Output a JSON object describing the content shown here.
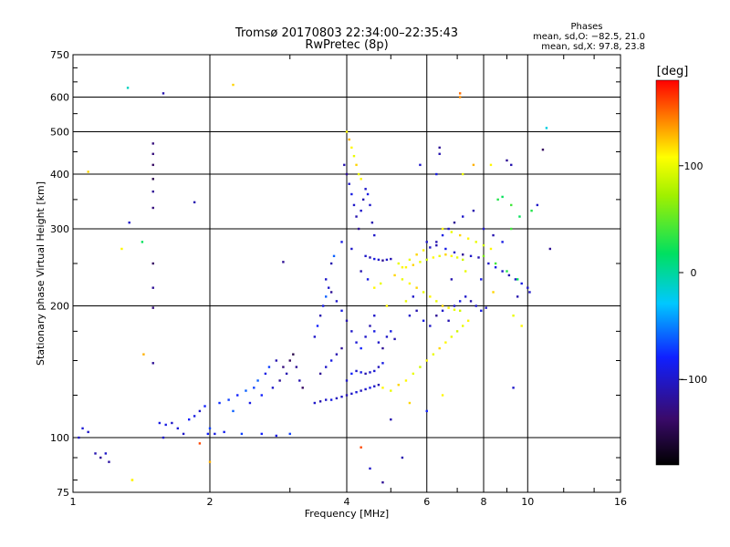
{
  "chart_data": {
    "type": "scatter",
    "title": "Tromsø 20170803 22:34:00–22:35:43",
    "subtitle": "RwPretec (8p)",
    "xlabel": "Frequency [MHz]",
    "ylabel": "Stationary phase Virtual Height [km]",
    "x_scale": "log",
    "y_scale": "log",
    "xlim": [
      1,
      16
    ],
    "ylim": [
      75,
      750
    ],
    "x_ticks": [
      1,
      2,
      4,
      6,
      8,
      10,
      16
    ],
    "y_ticks": [
      75,
      100,
      200,
      300,
      400,
      500,
      600,
      750
    ],
    "grid": true,
    "phase_stats": {
      "heading": "Phases",
      "o_line": "mean, sd,O: −82.5, 21.0",
      "x_line": "mean, sd,X:  97.8, 23.8"
    },
    "colorbar": {
      "unit": "[deg]",
      "range": [
        -180,
        180
      ],
      "ticks": [
        {
          "value": 100,
          "label": "100"
        },
        {
          "value": 0,
          "label": "0"
        },
        {
          "value": -100,
          "label": "−100"
        }
      ]
    },
    "points": [
      [
        1.03,
        100,
        -100
      ],
      [
        1.05,
        105,
        -95
      ],
      [
        1.08,
        103,
        -100
      ],
      [
        1.12,
        92,
        -110
      ],
      [
        1.15,
        90,
        -120
      ],
      [
        1.18,
        92,
        -100
      ],
      [
        1.2,
        88,
        -115
      ],
      [
        1.08,
        405,
        120
      ],
      [
        1.28,
        270,
        110
      ],
      [
        1.32,
        630,
        -10
      ],
      [
        1.35,
        80,
        120
      ],
      [
        1.33,
        310,
        -100
      ],
      [
        1.42,
        280,
        20
      ],
      [
        1.43,
        155,
        130
      ],
      [
        1.5,
        470,
        -130
      ],
      [
        1.5,
        445,
        -130
      ],
      [
        1.5,
        420,
        -140
      ],
      [
        1.5,
        390,
        -150
      ],
      [
        1.5,
        365,
        -120
      ],
      [
        1.5,
        335,
        -130
      ],
      [
        1.5,
        250,
        -140
      ],
      [
        1.5,
        220,
        -120
      ],
      [
        1.5,
        198,
        -130
      ],
      [
        1.5,
        148,
        -120
      ],
      [
        1.55,
        108,
        -90
      ],
      [
        1.58,
        612,
        -110
      ],
      [
        1.58,
        100,
        -100
      ],
      [
        1.6,
        107,
        -90
      ],
      [
        1.65,
        108,
        -100
      ],
      [
        1.7,
        105,
        -95
      ],
      [
        1.75,
        102,
        -100
      ],
      [
        1.8,
        110,
        -80
      ],
      [
        1.85,
        112,
        -90
      ],
      [
        1.9,
        115,
        -100
      ],
      [
        1.95,
        118,
        -80
      ],
      [
        1.98,
        102,
        -80
      ],
      [
        2.0,
        105,
        -70
      ],
      [
        2.05,
        102,
        -90
      ],
      [
        2.1,
        120,
        -75
      ],
      [
        2.15,
        103,
        -85
      ],
      [
        2.2,
        122,
        -70
      ],
      [
        2.25,
        115,
        -60
      ],
      [
        2.3,
        125,
        -80
      ],
      [
        2.35,
        102,
        -70
      ],
      [
        2.4,
        128,
        -60
      ],
      [
        2.45,
        120,
        -90
      ],
      [
        2.5,
        130,
        -70
      ],
      [
        2.55,
        135,
        -60
      ],
      [
        2.6,
        125,
        -80
      ],
      [
        2.65,
        140,
        -90
      ],
      [
        2.7,
        145,
        -70
      ],
      [
        2.75,
        130,
        -100
      ],
      [
        2.8,
        150,
        -110
      ],
      [
        2.85,
        135,
        -120
      ],
      [
        2.9,
        145,
        -130
      ],
      [
        2.95,
        140,
        -110
      ],
      [
        3.0,
        150,
        -140
      ],
      [
        3.05,
        155,
        -150
      ],
      [
        3.1,
        145,
        -120
      ],
      [
        3.15,
        135,
        -110
      ],
      [
        3.2,
        130,
        -140
      ],
      [
        2.6,
        102,
        -80
      ],
      [
        2.8,
        101,
        -90
      ],
      [
        3.0,
        102,
        -70
      ],
      [
        2.25,
        640,
        120
      ],
      [
        1.85,
        345,
        -110
      ],
      [
        2.9,
        252,
        -120
      ],
      [
        1.9,
        97,
        160
      ],
      [
        2.0,
        88,
        130
      ],
      [
        1.35,
        80,
        110
      ],
      [
        3.4,
        120,
        -100
      ],
      [
        3.5,
        121,
        -110
      ],
      [
        3.6,
        122,
        -100
      ],
      [
        3.7,
        122,
        -90
      ],
      [
        3.8,
        123,
        -105
      ],
      [
        3.9,
        124,
        -100
      ],
      [
        4.0,
        125,
        -110
      ],
      [
        4.1,
        126,
        -100
      ],
      [
        4.2,
        127,
        -95
      ],
      [
        4.3,
        128,
        -105
      ],
      [
        4.4,
        129,
        -100
      ],
      [
        4.5,
        130,
        -90
      ],
      [
        4.6,
        131,
        -100
      ],
      [
        4.7,
        132,
        -110
      ],
      [
        3.5,
        140,
        -120
      ],
      [
        3.6,
        145,
        -100
      ],
      [
        3.7,
        150,
        -90
      ],
      [
        3.8,
        155,
        -110
      ],
      [
        3.9,
        160,
        -120
      ],
      [
        4.0,
        135,
        -100
      ],
      [
        4.1,
        140,
        -80
      ],
      [
        4.2,
        142,
        -100
      ],
      [
        4.3,
        141,
        -90
      ],
      [
        4.4,
        140,
        -110
      ],
      [
        4.5,
        141,
        -100
      ],
      [
        4.6,
        142,
        -95
      ],
      [
        4.7,
        145,
        -105
      ],
      [
        4.8,
        148,
        -90
      ],
      [
        3.4,
        170,
        -100
      ],
      [
        3.45,
        180,
        -80
      ],
      [
        3.5,
        190,
        -110
      ],
      [
        3.55,
        200,
        -90
      ],
      [
        3.6,
        210,
        -60
      ],
      [
        3.65,
        220,
        -100
      ],
      [
        3.7,
        215,
        -120
      ],
      [
        3.8,
        205,
        -100
      ],
      [
        3.9,
        195,
        -90
      ],
      [
        4.0,
        185,
        -110
      ],
      [
        4.1,
        175,
        -100
      ],
      [
        4.2,
        165,
        -95
      ],
      [
        4.3,
        160,
        -80
      ],
      [
        4.4,
        170,
        -100
      ],
      [
        4.5,
        180,
        -110
      ],
      [
        4.6,
        175,
        -90
      ],
      [
        4.7,
        165,
        -100
      ],
      [
        4.8,
        160,
        -120
      ],
      [
        4.9,
        170,
        -100
      ],
      [
        5.0,
        175,
        -90
      ],
      [
        5.1,
        168,
        -110
      ],
      [
        3.95,
        420,
        -110
      ],
      [
        4.0,
        400,
        -120
      ],
      [
        4.05,
        380,
        -100
      ],
      [
        4.1,
        360,
        -90
      ],
      [
        4.15,
        340,
        -100
      ],
      [
        4.2,
        320,
        -110
      ],
      [
        4.25,
        300,
        -120
      ],
      [
        4.3,
        330,
        -100
      ],
      [
        4.35,
        350,
        -110
      ],
      [
        4.4,
        370,
        -100
      ],
      [
        4.45,
        360,
        -90
      ],
      [
        4.5,
        340,
        -100
      ],
      [
        4.55,
        310,
        -110
      ],
      [
        4.6,
        290,
        -100
      ],
      [
        4.05,
        480,
        130
      ],
      [
        4.1,
        460,
        110
      ],
      [
        4.15,
        440,
        100
      ],
      [
        4.2,
        420,
        120
      ],
      [
        4.25,
        400,
        100
      ],
      [
        4.3,
        390,
        110
      ],
      [
        4.0,
        500,
        110
      ],
      [
        4.4,
        260,
        -100
      ],
      [
        4.5,
        258,
        -110
      ],
      [
        4.6,
        256,
        -90
      ],
      [
        4.7,
        255,
        -100
      ],
      [
        4.8,
        254,
        -120
      ],
      [
        4.9,
        255,
        -100
      ],
      [
        5.0,
        256,
        -110
      ],
      [
        5.2,
        250,
        100
      ],
      [
        5.4,
        245,
        110
      ],
      [
        5.6,
        248,
        120
      ],
      [
        5.8,
        252,
        100
      ],
      [
        6.0,
        255,
        90
      ],
      [
        6.2,
        258,
        110
      ],
      [
        6.4,
        260,
        100
      ],
      [
        6.6,
        262,
        120
      ],
      [
        6.8,
        260,
        110
      ],
      [
        7.0,
        258,
        100
      ],
      [
        7.2,
        255,
        90
      ],
      [
        5.3,
        230,
        100
      ],
      [
        5.5,
        225,
        110
      ],
      [
        5.7,
        220,
        120
      ],
      [
        5.9,
        215,
        100
      ],
      [
        6.1,
        210,
        110
      ],
      [
        6.3,
        205,
        100
      ],
      [
        6.5,
        200,
        120
      ],
      [
        6.7,
        198,
        110
      ],
      [
        6.9,
        196,
        100
      ],
      [
        7.1,
        195,
        90
      ],
      [
        4.8,
        130,
        110
      ],
      [
        5.0,
        128,
        100
      ],
      [
        5.2,
        132,
        120
      ],
      [
        5.4,
        135,
        110
      ],
      [
        5.6,
        140,
        100
      ],
      [
        5.8,
        145,
        90
      ],
      [
        6.0,
        150,
        110
      ],
      [
        6.2,
        155,
        100
      ],
      [
        6.4,
        160,
        120
      ],
      [
        6.6,
        165,
        110
      ],
      [
        6.8,
        170,
        100
      ],
      [
        7.0,
        175,
        90
      ],
      [
        7.2,
        180,
        100
      ],
      [
        7.4,
        185,
        110
      ],
      [
        5.5,
        190,
        -100
      ],
      [
        5.7,
        195,
        -110
      ],
      [
        5.9,
        185,
        -90
      ],
      [
        6.1,
        180,
        -100
      ],
      [
        6.3,
        190,
        -120
      ],
      [
        6.5,
        195,
        -100
      ],
      [
        6.7,
        185,
        -110
      ],
      [
        6.9,
        200,
        -100
      ],
      [
        7.1,
        205,
        -90
      ],
      [
        7.3,
        210,
        -100
      ],
      [
        7.5,
        205,
        -110
      ],
      [
        7.7,
        200,
        -100
      ],
      [
        7.9,
        195,
        -90
      ],
      [
        8.1,
        198,
        -100
      ],
      [
        6.5,
        300,
        110
      ],
      [
        6.8,
        295,
        100
      ],
      [
        7.1,
        290,
        120
      ],
      [
        7.4,
        285,
        110
      ],
      [
        7.7,
        280,
        100
      ],
      [
        8.0,
        275,
        90
      ],
      [
        8.3,
        270,
        110
      ],
      [
        6.0,
        280,
        -100
      ],
      [
        6.3,
        275,
        -110
      ],
      [
        6.6,
        270,
        -90
      ],
      [
        6.9,
        265,
        -100
      ],
      [
        7.2,
        262,
        -120
      ],
      [
        7.5,
        260,
        -100
      ],
      [
        7.8,
        258,
        -110
      ],
      [
        8.2,
        250,
        -100
      ],
      [
        8.5,
        245,
        -90
      ],
      [
        8.8,
        240,
        -100
      ],
      [
        9.1,
        235,
        -110
      ],
      [
        9.4,
        230,
        -100
      ],
      [
        9.7,
        225,
        -90
      ],
      [
        10.0,
        220,
        -100
      ],
      [
        8.0,
        260,
        60
      ],
      [
        8.5,
        250,
        40
      ],
      [
        9.0,
        240,
        30
      ],
      [
        9.5,
        230,
        20
      ],
      [
        8.6,
        350,
        30
      ],
      [
        8.8,
        355,
        20
      ],
      [
        9.2,
        340,
        40
      ],
      [
        9.0,
        430,
        -120
      ],
      [
        9.2,
        420,
        -110
      ],
      [
        6.4,
        460,
        -120
      ],
      [
        6.4,
        445,
        -110
      ],
      [
        7.1,
        612,
        150
      ],
      [
        7.1,
        600,
        140
      ],
      [
        11.0,
        510,
        -20
      ],
      [
        10.8,
        455,
        -140
      ],
      [
        11.2,
        270,
        -120
      ],
      [
        5.8,
        420,
        -100
      ],
      [
        6.3,
        400,
        -90
      ],
      [
        7.2,
        400,
        100
      ],
      [
        7.6,
        420,
        130
      ],
      [
        8.3,
        420,
        110
      ],
      [
        4.5,
        85,
        -100
      ],
      [
        4.8,
        79,
        -120
      ],
      [
        4.3,
        95,
        160
      ],
      [
        5.3,
        90,
        -110
      ],
      [
        6.0,
        115,
        -80
      ],
      [
        6.5,
        125,
        110
      ],
      [
        9.3,
        130,
        -100
      ],
      [
        5.0,
        110,
        -110
      ],
      [
        5.5,
        120,
        120
      ],
      [
        4.6,
        190,
        -100
      ],
      [
        4.9,
        200,
        110
      ],
      [
        5.4,
        205,
        100
      ],
      [
        5.6,
        210,
        -100
      ],
      [
        6.8,
        230,
        -110
      ],
      [
        7.3,
        240,
        100
      ],
      [
        7.9,
        230,
        -90
      ],
      [
        8.4,
        215,
        120
      ],
      [
        9.3,
        190,
        100
      ],
      [
        9.7,
        180,
        110
      ],
      [
        10.1,
        215,
        -100
      ],
      [
        9.5,
        210,
        -110
      ],
      [
        3.6,
        230,
        -100
      ],
      [
        3.7,
        250,
        -110
      ],
      [
        3.75,
        260,
        -60
      ],
      [
        3.9,
        280,
        -90
      ],
      [
        4.1,
        270,
        -100
      ],
      [
        4.3,
        240,
        -110
      ],
      [
        4.45,
        230,
        -90
      ],
      [
        4.6,
        220,
        110
      ],
      [
        4.75,
        225,
        100
      ],
      [
        5.1,
        235,
        120
      ],
      [
        5.3,
        245,
        110
      ],
      [
        5.5,
        255,
        100
      ],
      [
        5.7,
        262,
        120
      ],
      [
        5.9,
        268,
        110
      ],
      [
        6.1,
        272,
        -100
      ],
      [
        6.3,
        280,
        -110
      ],
      [
        6.5,
        290,
        -90
      ],
      [
        6.7,
        300,
        -100
      ],
      [
        6.9,
        310,
        -120
      ],
      [
        7.2,
        320,
        -100
      ],
      [
        7.6,
        330,
        -110
      ],
      [
        8.0,
        300,
        -100
      ],
      [
        8.4,
        290,
        -110
      ],
      [
        8.8,
        280,
        -90
      ],
      [
        9.2,
        300,
        40
      ],
      [
        9.6,
        320,
        20
      ],
      [
        10.2,
        330,
        30
      ],
      [
        10.5,
        340,
        -100
      ]
    ]
  }
}
